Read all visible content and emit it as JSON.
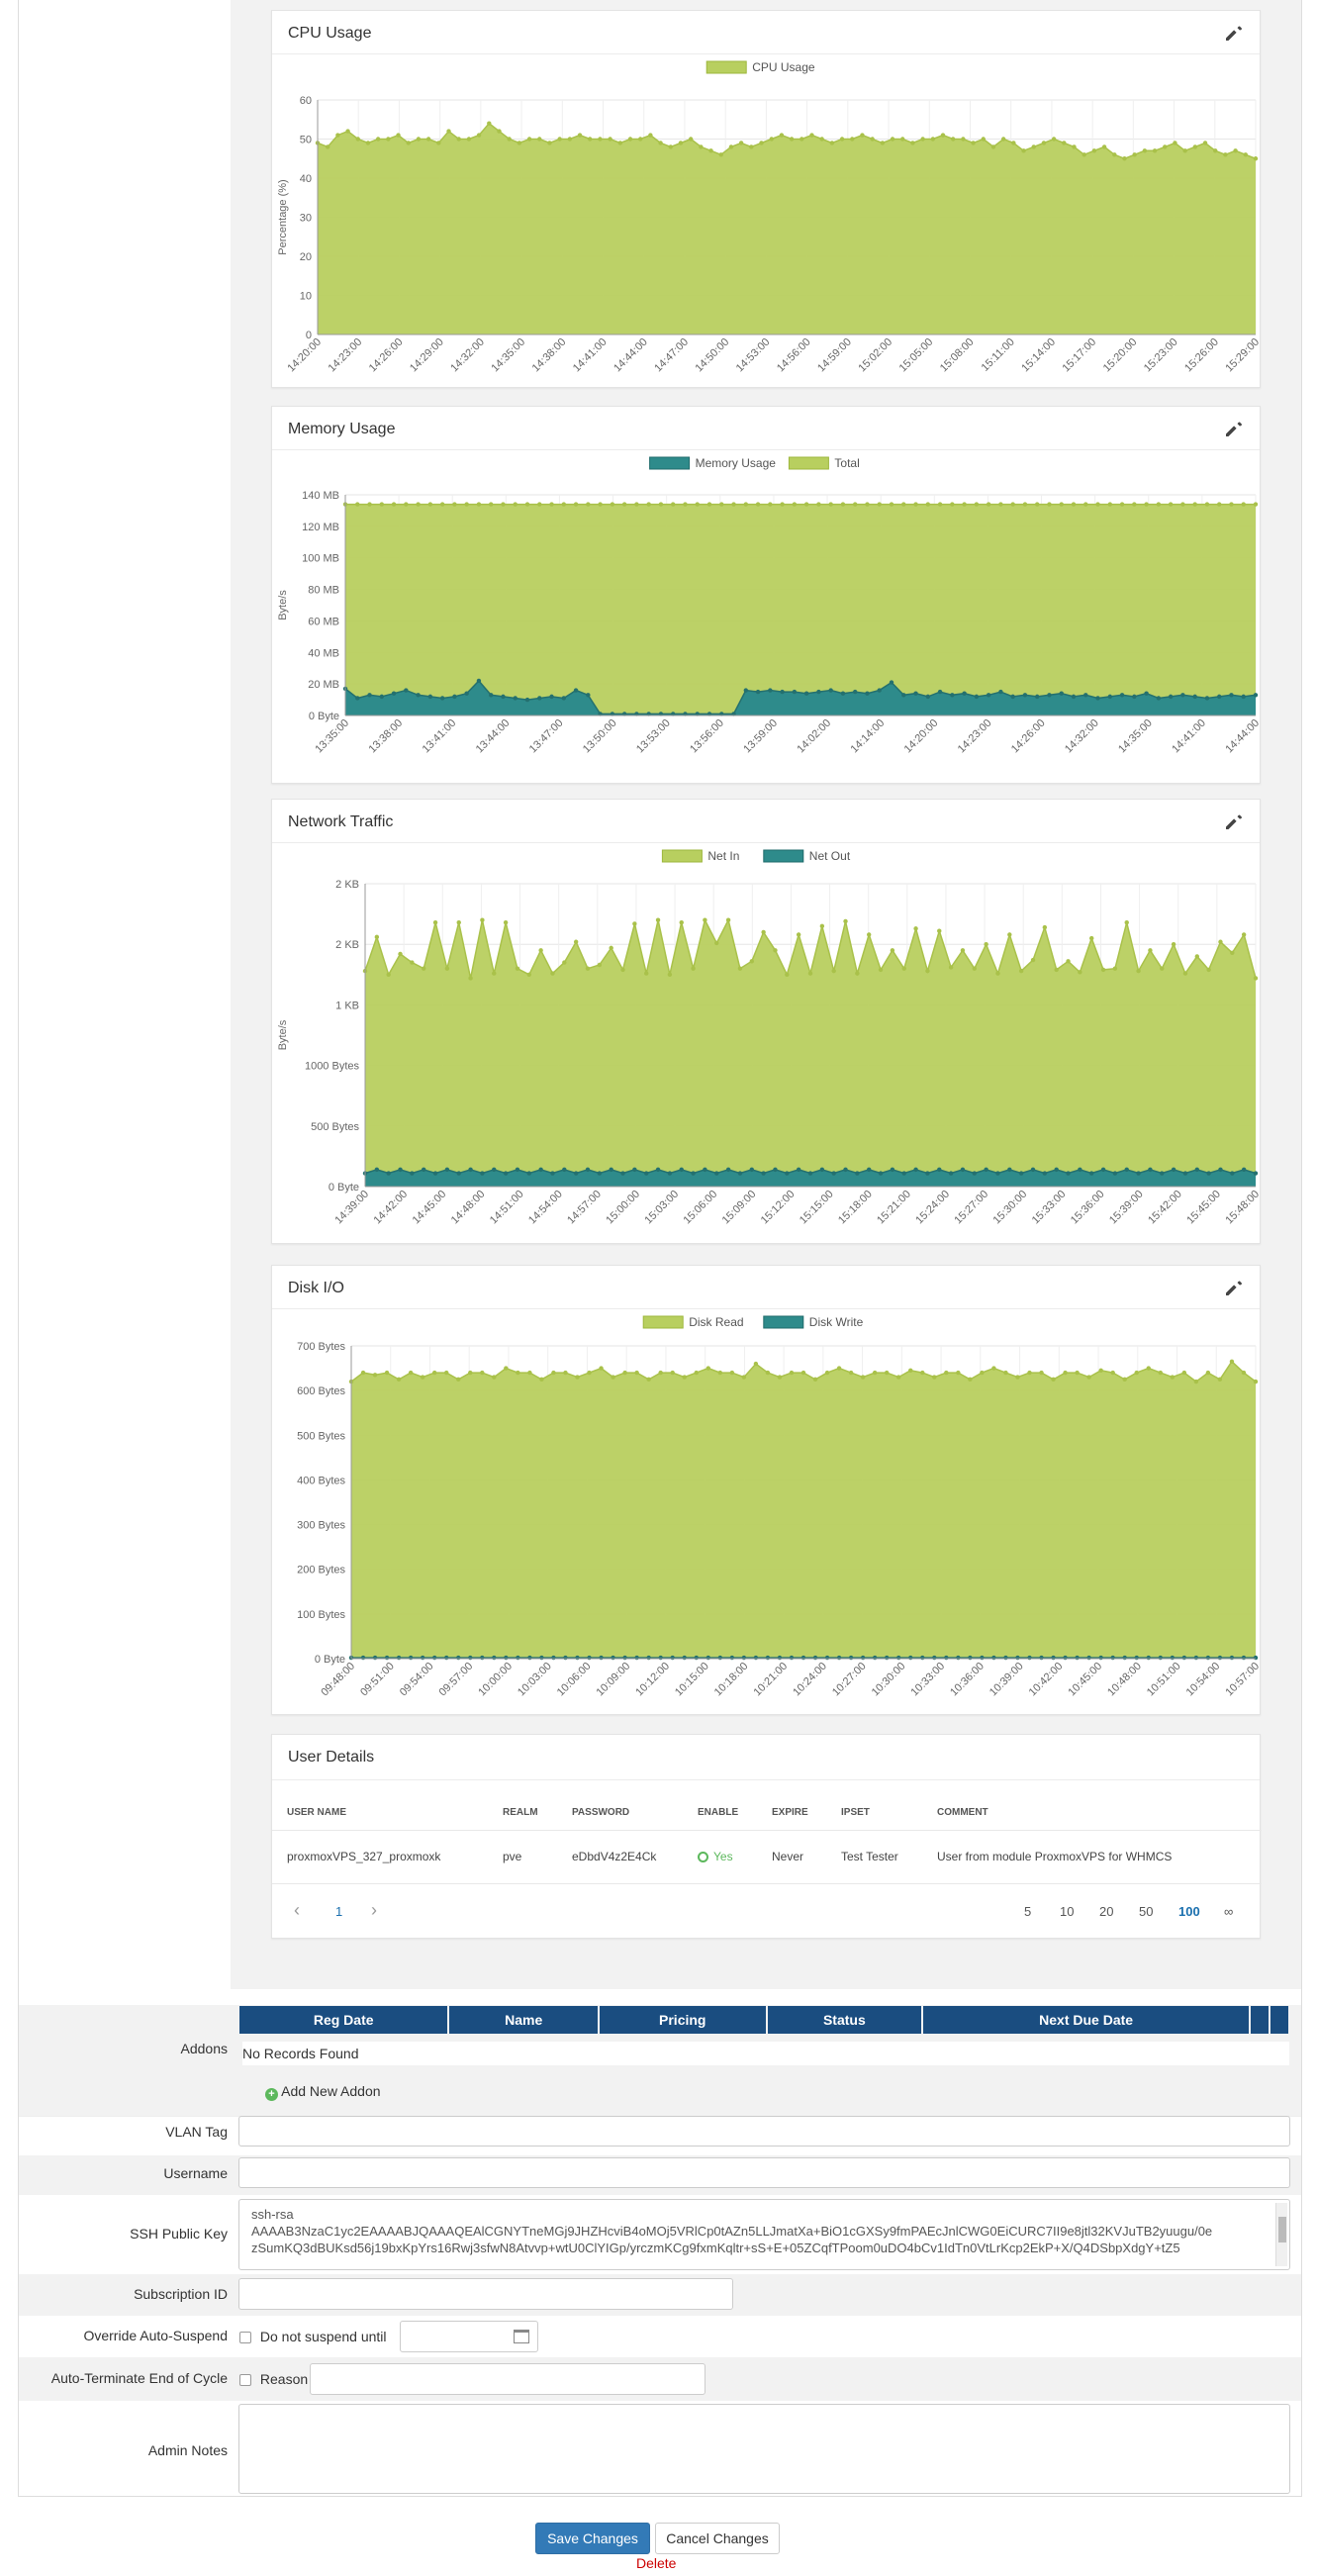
{
  "charts": {
    "cpu": {
      "title": "CPU Usage",
      "chart_data": {
        "type": "area",
        "ylabel": "Percentage (%)",
        "ylim": [
          0,
          60
        ],
        "yticks": [
          "0",
          "10",
          "20",
          "30",
          "40",
          "50",
          "60"
        ],
        "xticks": [
          "14:20:00",
          "14:23:00",
          "14:26:00",
          "14:29:00",
          "14:32:00",
          "14:35:00",
          "14:38:00",
          "14:41:00",
          "14:44:00",
          "14:47:00",
          "14:50:00",
          "14:53:00",
          "14:56:00",
          "14:59:00",
          "15:02:00",
          "15:05:00",
          "15:08:00",
          "15:11:00",
          "15:14:00",
          "15:17:00",
          "15:20:00",
          "15:23:00",
          "15:26:00",
          "15:29:00"
        ],
        "series": [
          {
            "name": "CPU Usage",
            "color": "#b8cf5f",
            "values": [
              49,
              48,
              51,
              52,
              50,
              49,
              50,
              50,
              51,
              49,
              50,
              50,
              49,
              52,
              50,
              50,
              51,
              54,
              52,
              50,
              49,
              50,
              50,
              49,
              50,
              50,
              51,
              50,
              50,
              50,
              49,
              50,
              50,
              51,
              49,
              48,
              49,
              50,
              48,
              47,
              46,
              48,
              49,
              48,
              49,
              50,
              51,
              50,
              50,
              51,
              50,
              49,
              50,
              50,
              51,
              50,
              49,
              50,
              50,
              49,
              50,
              50,
              51,
              50,
              50,
              49,
              50,
              48,
              50,
              49,
              47,
              48,
              49,
              50,
              49,
              48,
              46,
              47,
              48,
              46,
              45,
              46,
              47,
              47,
              48,
              49,
              47,
              48,
              49,
              47,
              46,
              47,
              46,
              45
            ]
          }
        ]
      }
    },
    "memory": {
      "title": "Memory Usage",
      "chart_data": {
        "type": "area",
        "ylabel": "Byte/s",
        "ylim": [
          0,
          140
        ],
        "yticks": [
          "0 Byte",
          "20 MB",
          "40 MB",
          "60 MB",
          "80 MB",
          "100 MB",
          "120 MB",
          "140 MB"
        ],
        "xticks": [
          "13:35:00",
          "13:38:00",
          "13:41:00",
          "13:44:00",
          "13:47:00",
          "13:50:00",
          "13:53:00",
          "13:56:00",
          "13:59:00",
          "14:02:00",
          "14:14:00",
          "14:20:00",
          "14:23:00",
          "14:26:00",
          "14:32:00",
          "14:35:00",
          "14:41:00",
          "14:44:00"
        ],
        "series": [
          {
            "name": "Memory Usage",
            "color": "#2e8b8b",
            "values": [
              17,
              11,
              13,
              12,
              14,
              16,
              13,
              12,
              11,
              12,
              14,
              22,
              13,
              12,
              11,
              10,
              11,
              12,
              11,
              16,
              13,
              1,
              1,
              1,
              1,
              1,
              1,
              1,
              1,
              1,
              1,
              1,
              1,
              16,
              15,
              16,
              15,
              15,
              14,
              15,
              16,
              14,
              15,
              14,
              16,
              21,
              13,
              14,
              12,
              15,
              13,
              14,
              12,
              13,
              15,
              12,
              13,
              12,
              13,
              14,
              12,
              13,
              11,
              12,
              13,
              12,
              14,
              11,
              12,
              13,
              12,
              11,
              12,
              13,
              12,
              13
            ]
          },
          {
            "name": "Total",
            "color": "#b8cf5f",
            "values": [
              134,
              134,
              134,
              134,
              134,
              134,
              134,
              134,
              134,
              134,
              134,
              134,
              134,
              134,
              134,
              134,
              134,
              134,
              134,
              134,
              134,
              134,
              134,
              134,
              134,
              134,
              134,
              134,
              134,
              134,
              134,
              134,
              134,
              134,
              134,
              134,
              134,
              134,
              134,
              134,
              134,
              134,
              134,
              134,
              134,
              134,
              134,
              134,
              134,
              134,
              134,
              134,
              134,
              134,
              134,
              134,
              134,
              134,
              134,
              134,
              134,
              134,
              134,
              134,
              134,
              134,
              134,
              134,
              134,
              134,
              134,
              134,
              134,
              134,
              134,
              134
            ]
          }
        ]
      }
    },
    "network": {
      "title": "Network Traffic",
      "chart_data": {
        "type": "area",
        "ylabel": "Byte/s",
        "ylim": [
          0,
          2500
        ],
        "yticks": [
          "0 Byte",
          "500 Bytes",
          "1000 Bytes",
          "1 KB",
          "2 KB",
          "2 KB"
        ],
        "ytick_values": [
          0,
          500,
          1000,
          1500,
          2000,
          2500
        ],
        "xticks": [
          "14:39:00",
          "14:42:00",
          "14:45:00",
          "14:48:00",
          "14:51:00",
          "14:54:00",
          "14:57:00",
          "15:00:00",
          "15:03:00",
          "15:06:00",
          "15:09:00",
          "15:12:00",
          "15:15:00",
          "15:18:00",
          "15:21:00",
          "15:24:00",
          "15:27:00",
          "15:30:00",
          "15:33:00",
          "15:36:00",
          "15:39:00",
          "15:42:00",
          "15:45:00",
          "15:48:00"
        ],
        "series": [
          {
            "name": "Net In",
            "color": "#b8cf5f",
            "values": [
              1780,
              2060,
              1750,
              1920,
              1850,
              1800,
              2180,
              1800,
              2180,
              1720,
              2200,
              1760,
              2180,
              1800,
              1750,
              1950,
              1760,
              1850,
              2020,
              1800,
              1830,
              1970,
              1790,
              2170,
              1760,
              2200,
              1750,
              2180,
              1800,
              2200,
              2010,
              2200,
              1800,
              1860,
              2100,
              1950,
              1750,
              2080,
              1760,
              2150,
              1780,
              2190,
              1760,
              2080,
              1790,
              1950,
              1800,
              2130,
              1780,
              2110,
              1810,
              1950,
              1800,
              2000,
              1760,
              2080,
              1780,
              1870,
              2140,
              1790,
              1860,
              1770,
              2050,
              1790,
              1800,
              2180,
              1780,
              1950,
              1800,
              2000,
              1760,
              1900,
              1790,
              2020,
              1930,
              2080,
              1720
            ]
          },
          {
            "name": "Net Out",
            "color": "#2e8b8b",
            "values": [
              110,
              140,
              110,
              140,
              110,
              140,
              110,
              140,
              110,
              140,
              110,
              140,
              110,
              140,
              110,
              140,
              110,
              140,
              110,
              140,
              110,
              140,
              110,
              140,
              110,
              140,
              110,
              140,
              110,
              140,
              110,
              140,
              110,
              140,
              110,
              140,
              110,
              140,
              110,
              140,
              110,
              140,
              110,
              140,
              110,
              140,
              110,
              140,
              110,
              140,
              110,
              140,
              110,
              140,
              110,
              140,
              110,
              140,
              110,
              140,
              110,
              140,
              110,
              140,
              110,
              140,
              110,
              140,
              110,
              140,
              110,
              140,
              110,
              140,
              110,
              140,
              110
            ]
          }
        ]
      }
    },
    "disk": {
      "title": "Disk I/O",
      "chart_data": {
        "type": "area",
        "ylim": [
          0,
          700
        ],
        "yticks": [
          "0 Byte",
          "100 Bytes",
          "200 Bytes",
          "300 Bytes",
          "400 Bytes",
          "500 Bytes",
          "600 Bytes",
          "700 Bytes"
        ],
        "xticks": [
          "09:48:00",
          "09:51:00",
          "09:54:00",
          "09:57:00",
          "10:00:00",
          "10:03:00",
          "10:06:00",
          "10:09:00",
          "10:12:00",
          "10:15:00",
          "10:18:00",
          "10:21:00",
          "10:24:00",
          "10:27:00",
          "10:30:00",
          "10:33:00",
          "10:36:00",
          "10:39:00",
          "10:42:00",
          "10:45:00",
          "10:48:00",
          "10:51:00",
          "10:54:00",
          "10:57:00"
        ],
        "series": [
          {
            "name": "Disk Read",
            "color": "#b8cf5f",
            "values": [
              620,
              640,
              635,
              640,
              625,
              640,
              630,
              640,
              640,
              625,
              640,
              640,
              630,
              650,
              640,
              640,
              625,
              640,
              640,
              630,
              640,
              650,
              630,
              640,
              640,
              625,
              640,
              640,
              630,
              640,
              650,
              640,
              640,
              630,
              660,
              640,
              630,
              640,
              640,
              625,
              640,
              650,
              640,
              630,
              640,
              640,
              630,
              645,
              640,
              630,
              640,
              640,
              625,
              640,
              650,
              640,
              630,
              640,
              640,
              625,
              640,
              640,
              630,
              645,
              640,
              625,
              640,
              650,
              640,
              630,
              640,
              620,
              640,
              625,
              665,
              640,
              620
            ]
          },
          {
            "name": "Disk Write",
            "color": "#2e8b8b",
            "values": [
              2,
              2,
              2,
              2,
              2,
              2,
              2,
              2,
              2,
              2,
              2,
              2,
              2,
              2,
              2,
              2,
              2,
              2,
              2,
              2,
              2,
              2,
              2,
              2,
              2,
              2,
              2,
              2,
              2,
              2,
              2,
              2,
              2,
              2,
              2,
              2,
              2,
              2,
              2,
              2,
              2,
              2,
              2,
              2,
              2,
              2,
              2,
              2,
              2,
              2,
              2,
              2,
              2,
              2,
              2,
              2,
              2,
              2,
              2,
              2,
              2,
              2,
              2,
              2,
              2,
              2,
              2,
              2,
              2,
              2,
              2,
              2,
              2,
              2,
              2,
              2,
              2
            ]
          }
        ]
      }
    }
  },
  "user_details": {
    "title": "User Details",
    "columns": [
      "USER NAME",
      "REALM",
      "PASSWORD",
      "ENABLE",
      "EXPIRE",
      "IPSET",
      "COMMENT"
    ],
    "row": {
      "username": "proxmoxVPS_327_proxmoxk",
      "realm": "pve",
      "password": "eDbdV4z2E4Ck",
      "enable": "Yes",
      "expire": "Never",
      "ipset": "Test Tester",
      "comment": "User from module ProxmoxVPS for WHMCS"
    },
    "pager": {
      "prev": "‹",
      "page": "1",
      "next": "›",
      "sizes": [
        "5",
        "10",
        "20",
        "50",
        "100",
        "∞"
      ],
      "active_size": "100"
    }
  },
  "form": {
    "addons_label": "Addons",
    "addons_columns": [
      "Reg Date",
      "Name",
      "Pricing",
      "Status",
      "Next Due Date",
      "",
      ""
    ],
    "no_records": "No Records Found",
    "add_addon": "Add New Addon",
    "vlan_label": "VLAN Tag",
    "vlan_value": "",
    "username_label": "Username",
    "username_value": "",
    "ssh_label": "SSH Public Key",
    "ssh_line1": "ssh-rsa",
    "ssh_line2": "AAAAB3NzaC1yc2EAAAABJQAAAQEAlCGNYTneMGj9JHZHcviB4oMOj5VRlCp0tAZn5LLJmatXa+BiO1cGXSy9fmPAEcJnlCWG0EiCURC7II9e8jtl32KVJuTB2yuugu/0e",
    "ssh_line3": "zSumKQ3dBUKsd56j19bxKpYrs16Rwj3sfwN8Atvvp+wtU0ClYIGp/yrczmKCg9fxmKqltr+sS+E+05ZCqfTPoom0uDO4bCv1IdTn0VtLrKcp2EkP+X/Q4DSbpXdgY+tZ5",
    "subscription_label": "Subscription ID",
    "override_label": "Override Auto-Suspend",
    "do_not_suspend": "Do not suspend until",
    "autoterm_label": "Auto-Terminate End of Cycle",
    "reason": "Reason",
    "admin_notes_label": "Admin Notes",
    "save": "Save Changes",
    "cancel": "Cancel Changes",
    "delete": "Delete"
  }
}
